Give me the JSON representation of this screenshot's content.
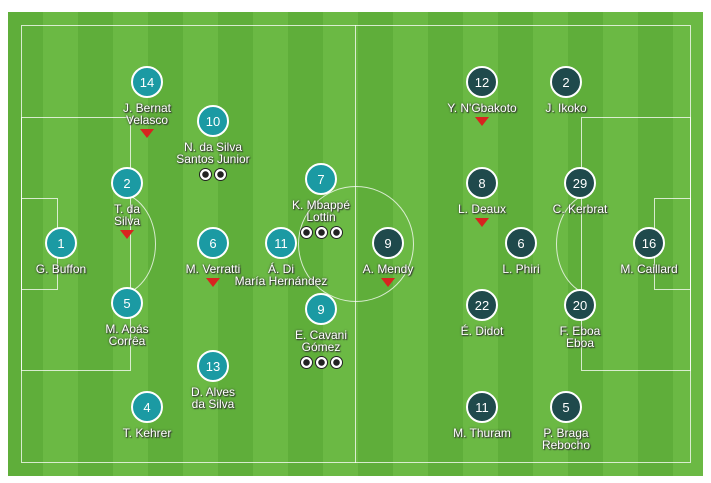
{
  "colors": {
    "home": "#1b9aa3",
    "away": "#1f4a4c",
    "substitution": "#d8231f",
    "pitch": "#64b33f"
  },
  "home": [
    {
      "number": "14",
      "name": [
        "J. Bernat",
        "Velasco"
      ],
      "subbed": true,
      "goals": 0
    },
    {
      "number": "10",
      "name": [
        "N. da Silva",
        "Santos Junior"
      ],
      "subbed": false,
      "goals": 2
    },
    {
      "number": "2",
      "name": [
        "T. da",
        "Silva"
      ],
      "subbed": true,
      "goals": 0
    },
    {
      "number": "1",
      "name": [
        "G. Buffon"
      ],
      "subbed": false,
      "goals": 0
    },
    {
      "number": "6",
      "name": [
        "M. Verratti"
      ],
      "subbed": true,
      "goals": 0
    },
    {
      "number": "11",
      "name": [
        "Á. Di",
        "María Hernández"
      ],
      "subbed": false,
      "goals": 0
    },
    {
      "number": "7",
      "name": [
        "K. Mbappé",
        "Lottin"
      ],
      "subbed": false,
      "goals": 3
    },
    {
      "number": "5",
      "name": [
        "M. Aoás",
        "Corrêa"
      ],
      "subbed": false,
      "goals": 0
    },
    {
      "number": "9",
      "name": [
        "E. Cavani",
        "Gómez"
      ],
      "subbed": false,
      "goals": 3
    },
    {
      "number": "13",
      "name": [
        "D. Alves",
        "da Silva"
      ],
      "subbed": false,
      "goals": 0
    },
    {
      "number": "4",
      "name": [
        "T. Kehrer"
      ],
      "subbed": false,
      "goals": 0
    }
  ],
  "away": [
    {
      "number": "12",
      "name": [
        "Y. N'Gbakoto"
      ],
      "subbed": true,
      "goals": 0
    },
    {
      "number": "2",
      "name": [
        "J. Ikoko"
      ],
      "subbed": false,
      "goals": 0
    },
    {
      "number": "8",
      "name": [
        "L. Deaux"
      ],
      "subbed": true,
      "goals": 0
    },
    {
      "number": "29",
      "name": [
        "C. Kerbrat"
      ],
      "subbed": false,
      "goals": 0
    },
    {
      "number": "9",
      "name": [
        "A. Mendy"
      ],
      "subbed": true,
      "goals": 0
    },
    {
      "number": "6",
      "name": [
        "L. Phiri"
      ],
      "subbed": false,
      "goals": 0
    },
    {
      "number": "16",
      "name": [
        "M. Caillard"
      ],
      "subbed": false,
      "goals": 0
    },
    {
      "number": "22",
      "name": [
        "É. Didot"
      ],
      "subbed": false,
      "goals": 0
    },
    {
      "number": "20",
      "name": [
        "F. Eboa",
        "Eboa"
      ],
      "subbed": false,
      "goals": 0
    },
    {
      "number": "11",
      "name": [
        "M. Thuram"
      ],
      "subbed": false,
      "goals": 0
    },
    {
      "number": "5",
      "name": [
        "P. Braga",
        "Rebocho"
      ],
      "subbed": false,
      "goals": 0
    }
  ]
}
